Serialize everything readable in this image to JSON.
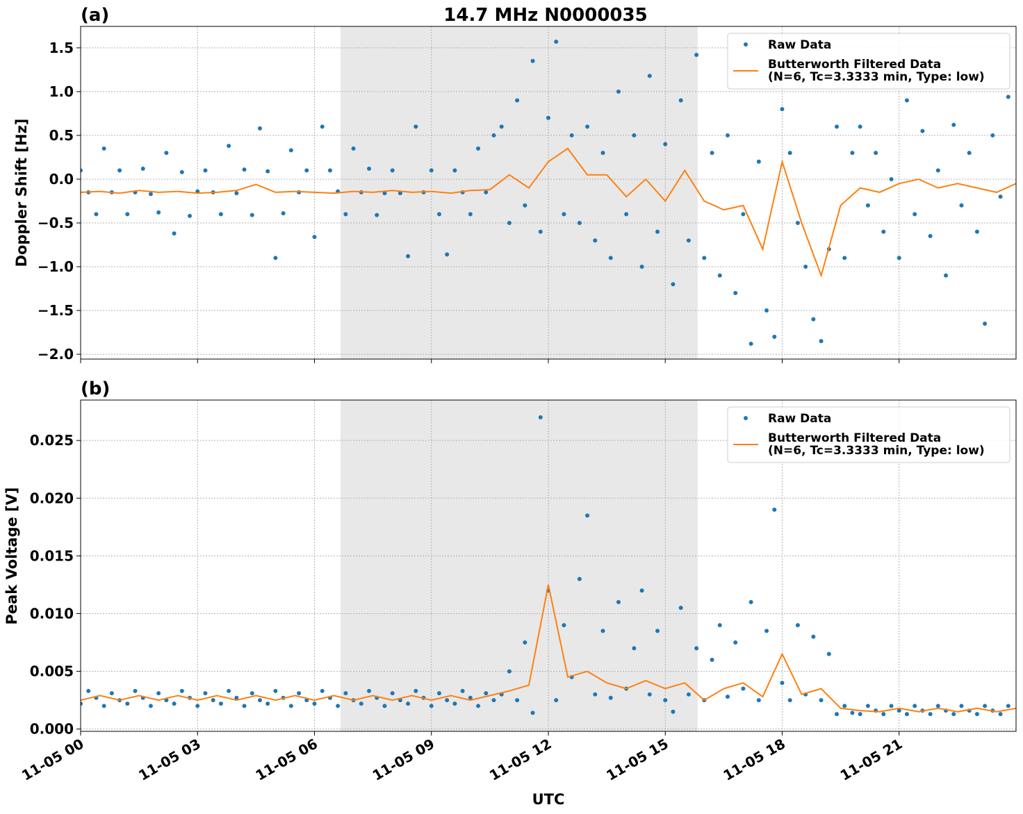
{
  "chart_data": [
    {
      "type": "scatter",
      "title": "14.7 MHz N0000035",
      "panel_label": "(a)",
      "y_label": "Doppler Shift [Hz]",
      "xlim": [
        0,
        24
      ],
      "xticks": [
        0,
        3,
        6,
        9,
        12,
        15,
        18,
        21
      ],
      "ylim": [
        -2.055,
        1.745
      ],
      "yticks": [
        {
          "value": 1.5,
          "label": "1.5"
        },
        {
          "value": 1.0,
          "label": "1.0"
        },
        {
          "value": 0.5,
          "label": "0.5"
        },
        {
          "value": 0.0,
          "label": "0.0"
        },
        {
          "value": -0.5,
          "label": "−0.5"
        },
        {
          "value": -1.0,
          "label": "−1.0"
        },
        {
          "value": -1.5,
          "label": "−1.5"
        },
        {
          "value": -2.0,
          "label": "−2.0"
        }
      ],
      "grid": true,
      "legend": "upper right",
      "shaded_span": [
        6.67,
        15.83
      ],
      "shade_color": "#e8e8e8",
      "series": [
        {
          "name": "Raw Data",
          "kind": "points",
          "color": "#1f77b4",
          "x": [
            0,
            0.2,
            0.4,
            0.6,
            0.8,
            1,
            1.2,
            1.4,
            1.6,
            1.8,
            2,
            2.2,
            2.4,
            2.6,
            2.8,
            3,
            3.2,
            3.4,
            3.6,
            3.8,
            4,
            4.2,
            4.4,
            4.6,
            4.8,
            5,
            5.2,
            5.4,
            5.6,
            5.8,
            6,
            6.2,
            6.4,
            6.6,
            6.8,
            7,
            7.2,
            7.4,
            7.6,
            7.8,
            8,
            8.2,
            8.4,
            8.6,
            8.8,
            9,
            9.2,
            9.4,
            9.6,
            9.8,
            10,
            10.2,
            10.4,
            10.6,
            10.8,
            11,
            11.2,
            11.4,
            11.6,
            11.8,
            12,
            12.2,
            12.4,
            12.6,
            12.8,
            13,
            13.2,
            13.4,
            13.6,
            13.8,
            14,
            14.2,
            14.4,
            14.6,
            14.8,
            15,
            15.2,
            15.4,
            15.6,
            15.8,
            16,
            16.2,
            16.4,
            16.6,
            16.8,
            17,
            17.2,
            17.4,
            17.6,
            17.8,
            18,
            18.2,
            18.4,
            18.6,
            18.8,
            19,
            19.2,
            19.4,
            19.6,
            19.8,
            20,
            20.2,
            20.4,
            20.6,
            20.8,
            21,
            21.2,
            21.4,
            21.6,
            21.8,
            22,
            22.2,
            22.4,
            22.6,
            22.8,
            23,
            23.2,
            23.4,
            23.6,
            23.8
          ],
          "values": [
            0.1,
            -0.15,
            -0.4,
            0.35,
            -0.15,
            0.1,
            -0.4,
            -0.15,
            0.12,
            -0.17,
            -0.38,
            0.3,
            -0.62,
            0.08,
            -0.42,
            -0.14,
            0.1,
            -0.15,
            -0.4,
            0.38,
            -0.16,
            0.11,
            -0.41,
            0.58,
            0.09,
            -0.9,
            -0.39,
            0.33,
            -0.15,
            0.1,
            -0.66,
            0.6,
            0.1,
            -0.14,
            -0.4,
            0.35,
            -0.15,
            0.12,
            -0.41,
            -0.16,
            0.1,
            -0.16,
            -0.88,
            0.6,
            -0.15,
            0.1,
            -0.4,
            -0.86,
            0.1,
            -0.15,
            -0.4,
            0.35,
            -0.15,
            0.5,
            0.6,
            -0.5,
            0.9,
            -0.3,
            1.35,
            -0.6,
            0.7,
            1.57,
            -0.4,
            0.5,
            -0.5,
            0.6,
            -0.7,
            0.3,
            -0.9,
            1.0,
            -0.4,
            0.5,
            -1.0,
            1.18,
            -0.6,
            0.4,
            -1.2,
            0.9,
            -0.7,
            1.42,
            -0.9,
            0.3,
            -1.1,
            0.5,
            -1.3,
            -0.4,
            -1.88,
            0.2,
            -1.5,
            -1.8,
            0.8,
            0.3,
            -0.5,
            -1.0,
            -1.6,
            -1.85,
            -0.8,
            0.6,
            -0.9,
            0.3,
            0.6,
            -0.3,
            0.3,
            -0.6,
            0,
            -0.9,
            0.9,
            -0.4,
            0.55,
            -0.65,
            0.1,
            -1.1,
            0.62,
            -0.3,
            0.3,
            -0.6,
            -1.65,
            0.5,
            -0.2,
            0.94
          ]
        },
        {
          "name": "Butterworth Filtered Data\n(N=6, Tc=3.3333 min, Type: low)",
          "kind": "line",
          "color": "#ff7f0e",
          "x": [
            0,
            0.5,
            1,
            1.5,
            2,
            2.5,
            3,
            3.5,
            4,
            4.5,
            5,
            5.5,
            6,
            6.5,
            7,
            7.5,
            8,
            8.5,
            9,
            9.5,
            10,
            10.5,
            11,
            11.5,
            12,
            12.5,
            13,
            13.5,
            14,
            14.5,
            15,
            15.5,
            16,
            16.5,
            17,
            17.5,
            18,
            18.5,
            19,
            19.5,
            20,
            20.5,
            21,
            21.5,
            22,
            22.5,
            23,
            23.5,
            24
          ],
          "values": [
            -0.15,
            -0.14,
            -0.16,
            -0.13,
            -0.15,
            -0.14,
            -0.16,
            -0.15,
            -0.13,
            -0.06,
            -0.15,
            -0.14,
            -0.15,
            -0.16,
            -0.14,
            -0.15,
            -0.13,
            -0.15,
            -0.14,
            -0.16,
            -0.13,
            -0.12,
            0.05,
            -0.1,
            0.2,
            0.35,
            0.05,
            0.05,
            -0.2,
            0.0,
            -0.25,
            0.1,
            -0.25,
            -0.35,
            -0.3,
            -0.8,
            0.2,
            -0.5,
            -1.1,
            -0.3,
            -0.1,
            -0.15,
            -0.05,
            0.0,
            -0.1,
            -0.05,
            -0.1,
            -0.15,
            -0.05
          ]
        }
      ]
    },
    {
      "type": "scatter",
      "panel_label": "(b)",
      "y_label": "Peak Voltage [V]",
      "x_label": "UTC",
      "xlim": [
        0,
        24
      ],
      "xticks": [
        {
          "value": 0,
          "label": "11-05 00"
        },
        {
          "value": 3,
          "label": "11-05 03"
        },
        {
          "value": 6,
          "label": "11-05 06"
        },
        {
          "value": 9,
          "label": "11-05 09"
        },
        {
          "value": 12,
          "label": "11-05 12"
        },
        {
          "value": 15,
          "label": "11-05 15"
        },
        {
          "value": 18,
          "label": "11-05 18"
        },
        {
          "value": 21,
          "label": "11-05 21"
        }
      ],
      "ylim": [
        -0.0002,
        0.0285
      ],
      "yticks": [
        {
          "value": 0,
          "label": "0.000"
        },
        {
          "value": 0.005,
          "label": "0.005"
        },
        {
          "value": 0.01,
          "label": "0.010"
        },
        {
          "value": 0.015,
          "label": "0.015"
        },
        {
          "value": 0.02,
          "label": "0.020"
        },
        {
          "value": 0.025,
          "label": "0.025"
        }
      ],
      "grid": true,
      "legend": "upper right",
      "shaded_span": [
        6.67,
        15.83
      ],
      "shade_color": "#e8e8e8",
      "series": [
        {
          "name": "Raw Data",
          "kind": "points",
          "color": "#1f77b4",
          "x": [
            0,
            0.2,
            0.4,
            0.6,
            0.8,
            1,
            1.2,
            1.4,
            1.6,
            1.8,
            2,
            2.2,
            2.4,
            2.6,
            2.8,
            3,
            3.2,
            3.4,
            3.6,
            3.8,
            4,
            4.2,
            4.4,
            4.6,
            4.8,
            5,
            5.2,
            5.4,
            5.6,
            5.8,
            6,
            6.2,
            6.4,
            6.6,
            6.8,
            7,
            7.2,
            7.4,
            7.6,
            7.8,
            8,
            8.2,
            8.4,
            8.6,
            8.8,
            9,
            9.2,
            9.4,
            9.6,
            9.8,
            10,
            10.2,
            10.4,
            10.6,
            10.8,
            11,
            11.2,
            11.4,
            11.6,
            11.8,
            12,
            12.2,
            12.4,
            12.6,
            12.8,
            13,
            13.2,
            13.4,
            13.6,
            13.8,
            14,
            14.2,
            14.4,
            14.6,
            14.8,
            15,
            15.2,
            15.4,
            15.6,
            15.8,
            16,
            16.2,
            16.4,
            16.6,
            16.8,
            17,
            17.2,
            17.4,
            17.6,
            17.8,
            18,
            18.2,
            18.4,
            18.6,
            18.8,
            19,
            19.2,
            19.4,
            19.6,
            19.8,
            20,
            20.2,
            20.4,
            20.6,
            20.8,
            21,
            21.2,
            21.4,
            21.6,
            21.8,
            22,
            22.2,
            22.4,
            22.6,
            22.8,
            23,
            23.2,
            23.4,
            23.6,
            23.8
          ],
          "values": [
            0.0022,
            0.0033,
            0.0027,
            0.002,
            0.0031,
            0.0025,
            0.0022,
            0.0033,
            0.0027,
            0.002,
            0.0031,
            0.0025,
            0.0022,
            0.0033,
            0.0027,
            0.002,
            0.0031,
            0.0025,
            0.0022,
            0.0033,
            0.0027,
            0.002,
            0.0031,
            0.0025,
            0.0022,
            0.0033,
            0.0027,
            0.002,
            0.0031,
            0.0025,
            0.0022,
            0.0033,
            0.0027,
            0.002,
            0.0031,
            0.0025,
            0.0022,
            0.0033,
            0.0027,
            0.002,
            0.0031,
            0.0025,
            0.0022,
            0.0033,
            0.0027,
            0.002,
            0.0031,
            0.0025,
            0.0022,
            0.0033,
            0.0027,
            0.002,
            0.0031,
            0.0025,
            0.003,
            0.005,
            0.0025,
            0.0075,
            0.0014,
            0.027,
            0.012,
            0.0025,
            0.009,
            0.0045,
            0.013,
            0.0185,
            0.003,
            0.0085,
            0.0027,
            0.011,
            0.0035,
            0.007,
            0.012,
            0.003,
            0.0085,
            0.0025,
            0.0015,
            0.0105,
            0.003,
            0.007,
            0.0025,
            0.006,
            0.009,
            0.0028,
            0.0075,
            0.0035,
            0.011,
            0.0025,
            0.0085,
            0.019,
            0.004,
            0.0025,
            0.009,
            0.003,
            0.008,
            0.0025,
            0.0065,
            0.0013,
            0.002,
            0.0014,
            0.0013,
            0.002,
            0.0016,
            0.0013,
            0.002,
            0.0016,
            0.0013,
            0.002,
            0.0016,
            0.0013,
            0.002,
            0.0016,
            0.0013,
            0.002,
            0.0016,
            0.0013,
            0.002,
            0.0016,
            0.0013,
            0.002
          ]
        },
        {
          "name": "Butterworth Filtered Data\n(N=6, Tc=3.3333 min, Type: low)",
          "kind": "line",
          "color": "#ff7f0e",
          "x": [
            0,
            0.5,
            1,
            1.5,
            2,
            2.5,
            3,
            3.5,
            4,
            4.5,
            5,
            5.5,
            6,
            6.5,
            7,
            7.5,
            8,
            8.5,
            9,
            9.5,
            10,
            10.5,
            11,
            11.5,
            12,
            12.5,
            13,
            13.5,
            14,
            14.5,
            15,
            15.5,
            16,
            16.5,
            17,
            17.5,
            18,
            18.5,
            19,
            19.5,
            20,
            20.5,
            21,
            21.5,
            22,
            22.5,
            23,
            23.5,
            24
          ],
          "values": [
            0.0025,
            0.0029,
            0.0025,
            0.0029,
            0.0025,
            0.0029,
            0.0025,
            0.0029,
            0.0025,
            0.0029,
            0.0025,
            0.0029,
            0.0025,
            0.0029,
            0.0025,
            0.0029,
            0.0025,
            0.0029,
            0.0025,
            0.0029,
            0.0025,
            0.0029,
            0.0033,
            0.0038,
            0.0125,
            0.0045,
            0.005,
            0.004,
            0.0035,
            0.0042,
            0.0035,
            0.004,
            0.0025,
            0.0035,
            0.004,
            0.0028,
            0.0065,
            0.003,
            0.0035,
            0.0018,
            0.0016,
            0.0015,
            0.0018,
            0.0015,
            0.0018,
            0.0015,
            0.0018,
            0.0015,
            0.0018
          ]
        }
      ]
    }
  ]
}
